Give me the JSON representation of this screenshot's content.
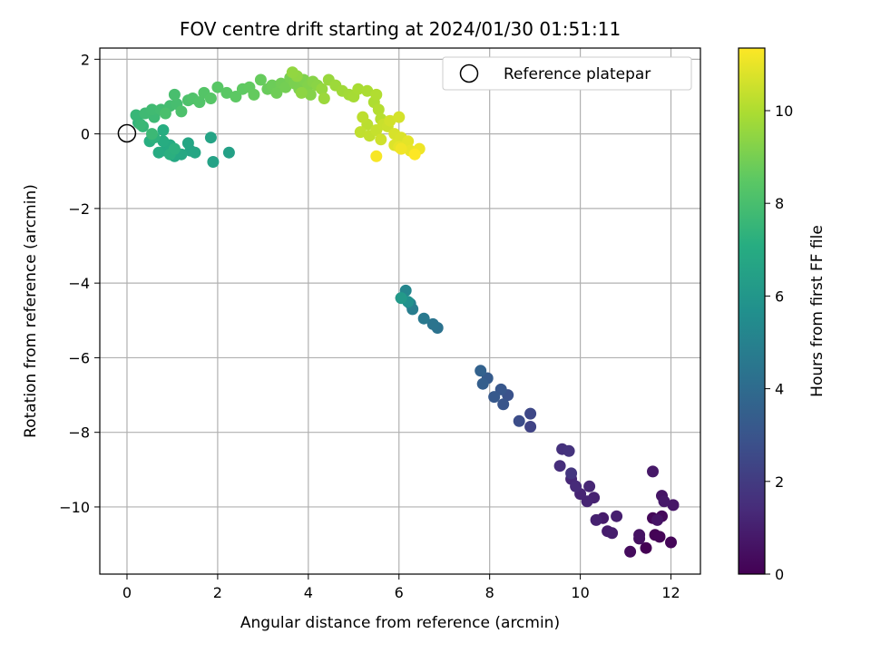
{
  "chart_data": {
    "type": "scatter",
    "title": "FOV centre drift starting at 2024/01/30 01:51:11",
    "xlabel": "Angular distance from reference (arcmin)",
    "ylabel": "Rotation from reference (arcmin)",
    "xlim": [
      -0.6,
      12.65
    ],
    "ylim": [
      -11.8,
      2.3
    ],
    "xticks": [
      0,
      2,
      4,
      6,
      8,
      10,
      12
    ],
    "yticks": [
      2,
      0,
      -2,
      -4,
      -6,
      -8,
      -10
    ],
    "xtick_labels": [
      "0",
      "2",
      "4",
      "6",
      "8",
      "10",
      "12"
    ],
    "ytick_labels": [
      "2",
      "0",
      "−2",
      "−4",
      "−6",
      "−8",
      "−10"
    ],
    "grid": true,
    "legend": {
      "position": "upper right",
      "entries": [
        "Reference platepar"
      ]
    },
    "reference_point": {
      "x": 0,
      "y": 0,
      "label": "Reference platepar"
    },
    "colorbar": {
      "label": "Hours from first FF file",
      "colormap": "viridis",
      "range": [
        0,
        11.35
      ],
      "ticks": [
        0,
        2,
        4,
        6,
        8,
        10
      ],
      "tick_labels": [
        "0",
        "2",
        "4",
        "6",
        "8",
        "10"
      ]
    },
    "points": [
      [
        11.45,
        -11.1,
        0.0
      ],
      [
        11.65,
        -10.75,
        0.05
      ],
      [
        11.75,
        -10.8,
        0.1
      ],
      [
        12.0,
        -10.95,
        0.15
      ],
      [
        11.6,
        -10.3,
        0.2
      ],
      [
        11.8,
        -10.25,
        0.25
      ],
      [
        11.1,
        -11.2,
        0.35
      ],
      [
        11.3,
        -10.85,
        0.45
      ],
      [
        11.3,
        -10.75,
        0.55
      ],
      [
        11.7,
        -10.35,
        0.6
      ],
      [
        11.8,
        -9.7,
        0.65
      ],
      [
        12.05,
        -9.95,
        0.7
      ],
      [
        11.6,
        -9.05,
        0.75
      ],
      [
        11.85,
        -9.85,
        0.8
      ],
      [
        10.5,
        -10.3,
        0.85
      ],
      [
        10.6,
        -10.65,
        0.9
      ],
      [
        10.7,
        -10.7,
        0.95
      ],
      [
        10.8,
        -10.25,
        1.0
      ],
      [
        10.35,
        -10.35,
        1.05
      ],
      [
        10.3,
        -9.75,
        1.1
      ],
      [
        10.15,
        -9.85,
        1.15
      ],
      [
        10.0,
        -9.65,
        1.2
      ],
      [
        10.2,
        -9.45,
        1.25
      ],
      [
        9.8,
        -9.25,
        1.3
      ],
      [
        9.9,
        -9.45,
        1.4
      ],
      [
        9.55,
        -8.9,
        1.5
      ],
      [
        9.6,
        -8.45,
        1.6
      ],
      [
        9.75,
        -8.5,
        1.7
      ],
      [
        9.8,
        -9.1,
        1.8
      ],
      [
        8.9,
        -7.85,
        2.3
      ],
      [
        8.9,
        -7.5,
        2.5
      ],
      [
        8.65,
        -7.7,
        2.7
      ],
      [
        8.4,
        -7.0,
        2.9
      ],
      [
        8.3,
        -7.25,
        3.0
      ],
      [
        8.25,
        -6.85,
        3.1
      ],
      [
        8.1,
        -7.05,
        3.2
      ],
      [
        7.95,
        -6.55,
        3.3
      ],
      [
        7.85,
        -6.7,
        3.45
      ],
      [
        7.8,
        -6.35,
        3.6
      ],
      [
        6.85,
        -5.2,
        4.3
      ],
      [
        6.75,
        -5.1,
        4.4
      ],
      [
        6.55,
        -4.95,
        4.6
      ],
      [
        6.3,
        -4.7,
        4.8
      ],
      [
        6.25,
        -4.55,
        4.95
      ],
      [
        6.15,
        -4.2,
        5.2
      ],
      [
        6.05,
        -4.4,
        5.4
      ],
      [
        6.2,
        -4.5,
        5.7
      ],
      [
        6.05,
        -4.4,
        6.1
      ],
      [
        2.25,
        -0.5,
        6.45
      ],
      [
        1.9,
        -0.75,
        6.55
      ],
      [
        1.85,
        -0.1,
        6.6
      ],
      [
        1.4,
        -0.45,
        6.65
      ],
      [
        1.35,
        -0.25,
        6.7
      ],
      [
        1.5,
        -0.5,
        6.75
      ],
      [
        1.2,
        -0.55,
        6.8
      ],
      [
        1.05,
        -0.6,
        6.85
      ],
      [
        0.85,
        -0.45,
        6.9
      ],
      [
        0.95,
        -0.3,
        6.95
      ],
      [
        0.7,
        -0.5,
        7.0
      ],
      [
        0.8,
        -0.2,
        7.05
      ],
      [
        0.8,
        0.1,
        7.1
      ],
      [
        0.5,
        -0.2,
        7.15
      ],
      [
        0.95,
        -0.55,
        7.2
      ],
      [
        1.05,
        -0.4,
        7.25
      ],
      [
        0.6,
        -0.1,
        7.3
      ],
      [
        0.25,
        0.3,
        7.4
      ],
      [
        0.35,
        0.2,
        7.5
      ],
      [
        0.2,
        0.5,
        7.55
      ],
      [
        0.3,
        0.25,
        7.6
      ],
      [
        0.55,
        0.0,
        7.65
      ],
      [
        0.6,
        0.45,
        7.7
      ],
      [
        0.4,
        0.55,
        7.75
      ],
      [
        0.55,
        0.65,
        7.8
      ],
      [
        0.75,
        0.65,
        7.85
      ],
      [
        0.95,
        0.75,
        7.9
      ],
      [
        1.1,
        0.8,
        7.95
      ],
      [
        1.05,
        1.05,
        8.0
      ],
      [
        0.85,
        0.55,
        8.05
      ],
      [
        1.2,
        0.6,
        8.1
      ],
      [
        1.35,
        0.9,
        8.15
      ],
      [
        1.45,
        0.95,
        8.2
      ],
      [
        1.6,
        0.85,
        8.25
      ],
      [
        1.7,
        1.1,
        8.3
      ],
      [
        1.85,
        0.95,
        8.35
      ],
      [
        2.0,
        1.25,
        8.4
      ],
      [
        2.2,
        1.1,
        8.45
      ],
      [
        2.4,
        1.0,
        8.5
      ],
      [
        2.55,
        1.2,
        8.55
      ],
      [
        2.7,
        1.25,
        8.6
      ],
      [
        2.8,
        1.05,
        8.65
      ],
      [
        2.95,
        1.45,
        8.7
      ],
      [
        3.1,
        1.2,
        8.75
      ],
      [
        3.2,
        1.3,
        8.8
      ],
      [
        3.3,
        1.1,
        8.85
      ],
      [
        3.4,
        1.35,
        8.9
      ],
      [
        3.5,
        1.25,
        8.95
      ],
      [
        3.6,
        1.5,
        9.0
      ],
      [
        3.7,
        1.35,
        9.05
      ],
      [
        3.8,
        1.2,
        9.1
      ],
      [
        3.9,
        1.45,
        9.15
      ],
      [
        4.0,
        1.3,
        9.2
      ],
      [
        4.05,
        1.05,
        9.25
      ],
      [
        4.1,
        1.4,
        9.3
      ],
      [
        4.2,
        1.3,
        9.35
      ],
      [
        3.85,
        1.1,
        9.4
      ],
      [
        3.75,
        1.55,
        9.45
      ],
      [
        3.65,
        1.65,
        9.5
      ],
      [
        4.3,
        1.2,
        9.55
      ],
      [
        4.45,
        1.45,
        9.6
      ],
      [
        4.35,
        0.95,
        9.65
      ],
      [
        4.6,
        1.3,
        9.7
      ],
      [
        4.75,
        1.15,
        9.75
      ],
      [
        4.9,
        1.05,
        9.8
      ],
      [
        5.0,
        1.0,
        9.85
      ],
      [
        5.1,
        1.2,
        9.9
      ],
      [
        5.3,
        1.15,
        9.95
      ],
      [
        5.45,
        0.85,
        10.0
      ],
      [
        5.5,
        1.05,
        10.05
      ],
      [
        5.55,
        0.65,
        10.1
      ],
      [
        5.6,
        0.4,
        10.15
      ],
      [
        5.3,
        0.25,
        10.2
      ],
      [
        5.2,
        0.45,
        10.25
      ],
      [
        5.15,
        0.05,
        10.3
      ],
      [
        5.35,
        -0.05,
        10.35
      ],
      [
        5.5,
        0.1,
        10.4
      ],
      [
        5.65,
        0.25,
        10.45
      ],
      [
        5.75,
        0.2,
        10.5
      ],
      [
        5.6,
        -0.15,
        10.55
      ],
      [
        5.8,
        0.35,
        10.6
      ],
      [
        6.0,
        0.45,
        10.65
      ],
      [
        5.9,
        0.0,
        10.7
      ],
      [
        6.05,
        -0.1,
        10.75
      ],
      [
        5.9,
        -0.3,
        10.8
      ],
      [
        6.1,
        -0.35,
        10.85
      ],
      [
        6.2,
        -0.2,
        10.9
      ],
      [
        6.0,
        -0.35,
        10.95
      ],
      [
        6.25,
        -0.45,
        11.0
      ],
      [
        6.35,
        -0.5,
        11.05
      ],
      [
        6.45,
        -0.4,
        11.1
      ],
      [
        6.05,
        -0.4,
        11.15
      ],
      [
        5.5,
        -0.6,
        11.25
      ],
      [
        6.35,
        -0.55,
        11.35
      ]
    ]
  }
}
